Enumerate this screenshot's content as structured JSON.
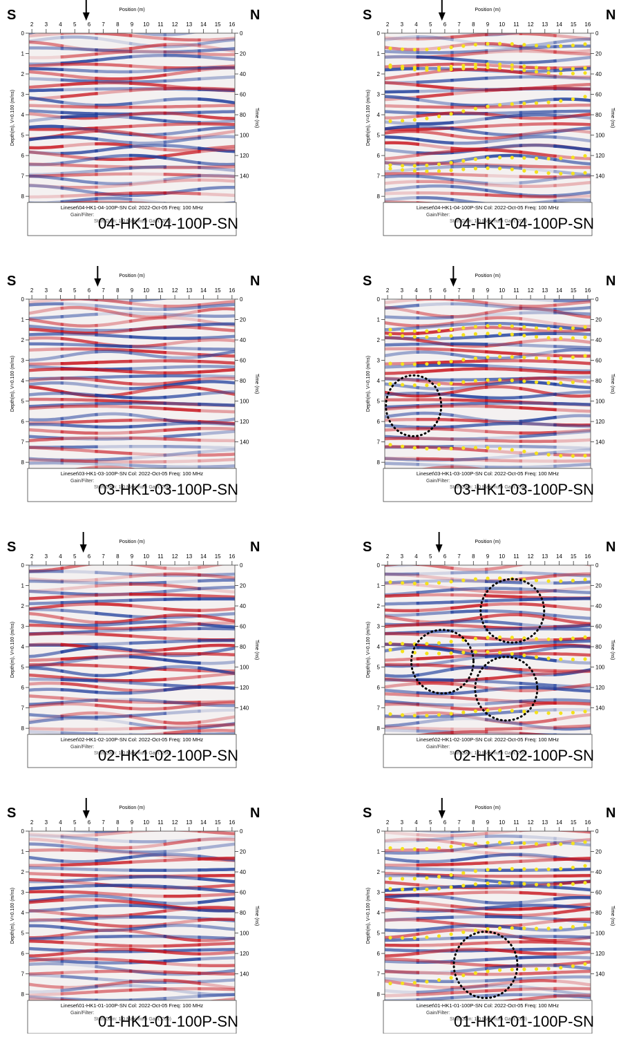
{
  "labels": {
    "south": "S",
    "north": "N",
    "position": "Position (m)",
    "depth": "Depth(m), V=0.100 (m/ns)",
    "time": "Time (ns)",
    "gain": "Gain/Filter:",
    "start_gain": "Start Gain: 1.0 Maximum Gain: 200)"
  },
  "x_lim": [
    1.8,
    16.2
  ],
  "x_ticks": [
    2,
    3,
    4,
    5,
    6,
    7,
    8,
    9,
    10,
    11,
    12,
    13,
    14,
    15,
    16
  ],
  "depth_lim": [
    0,
    8.3
  ],
  "depth_ticks": [
    0,
    1,
    2,
    3,
    4,
    5,
    6,
    7,
    8
  ],
  "time_lim": [
    0,
    166
  ],
  "time_ticks": [
    0,
    20,
    40,
    60,
    80,
    100,
    120,
    140
  ],
  "rows": [
    {
      "line_id": "04-HK1-04-100P-SN",
      "info": "Lineset\\04-HK1-04-100P-SN  Col: 2022-Oct-05 Freq: 100 MHz",
      "arrow_position": 5.8
    },
    {
      "line_id": "03-HK1-03-100P-SN",
      "info": "Lineset\\03-HK1-03-100P-SN  Col: 2022-Oct-05 Freq: 100 MHz",
      "arrow_position": 6.6
    },
    {
      "line_id": "02-HK1-02-100P-SN",
      "info": "Lineset\\02-HK1-02-100P-SN  Col: 2022-Oct-05 Freq: 100 MHz",
      "arrow_position": 5.6
    },
    {
      "line_id": "01-HK1-01-100P-SN",
      "info": "Lineset\\01-HK1-01-100P-SN  Col: 2022-Oct-05 Freq: 100 MHz",
      "arrow_position": 5.8
    }
  ]
}
